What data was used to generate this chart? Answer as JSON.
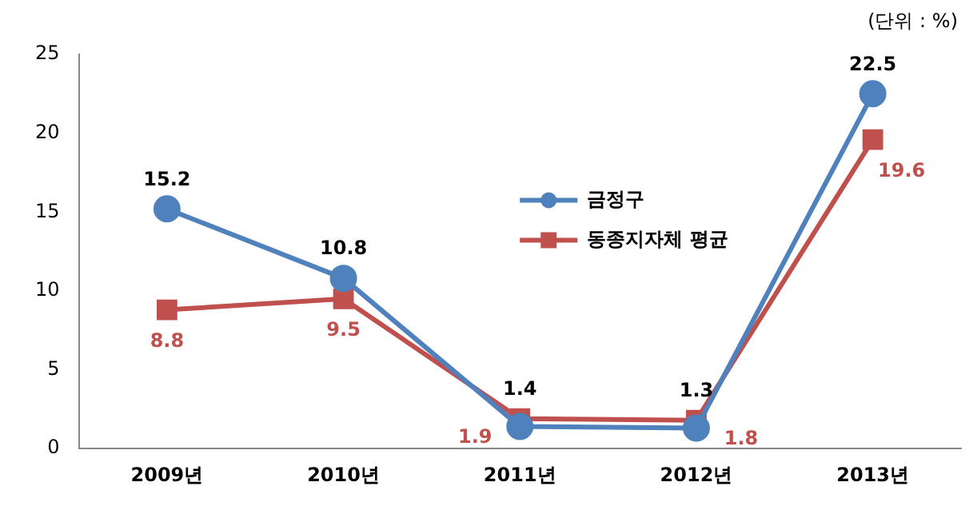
{
  "chart_data": {
    "type": "line",
    "categories": [
      "2009년",
      "2010년",
      "2011년",
      "2012년",
      "2013년"
    ],
    "series": [
      {
        "name": "금정구",
        "color": "#4f81bd",
        "marker": "circle",
        "values": [
          15.2,
          10.8,
          1.4,
          1.3,
          22.5
        ]
      },
      {
        "name": "동종지자체 평균",
        "color": "#c0504d",
        "marker": "square",
        "values": [
          8.8,
          9.5,
          1.9,
          1.8,
          19.6
        ]
      }
    ],
    "ylim": [
      0,
      25
    ],
    "yticks": [
      0,
      5,
      10,
      15,
      20,
      25
    ],
    "grid": false,
    "legend": "center",
    "data_labels": true,
    "annotations": [
      "(단위 : %)"
    ]
  }
}
